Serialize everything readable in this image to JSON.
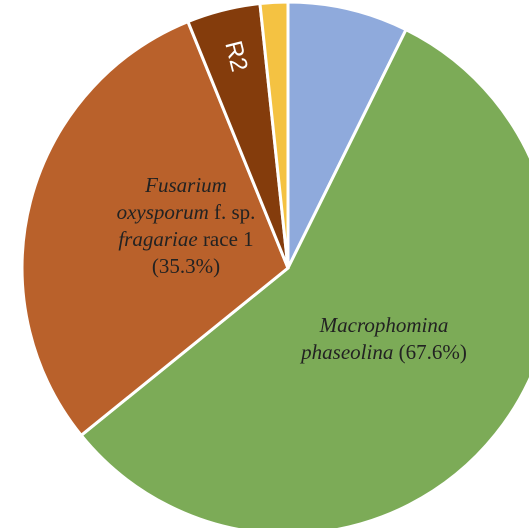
{
  "chart_data": {
    "type": "pie",
    "categories": [
      null,
      "Macrophomina phaseolina",
      "Fusarium oxysporum f. sp. fragariae race 1",
      "R2",
      null
    ],
    "values": [
      8.7,
      67.6,
      35.3,
      5.3,
      2.0
    ],
    "value_labels": [
      null,
      "(67.6%)",
      "(35.3%)",
      null,
      null
    ],
    "colors": [
      "#8faadc",
      "#7cab57",
      "#b9612b",
      "#843c0c",
      "#f4c242"
    ]
  }
}
